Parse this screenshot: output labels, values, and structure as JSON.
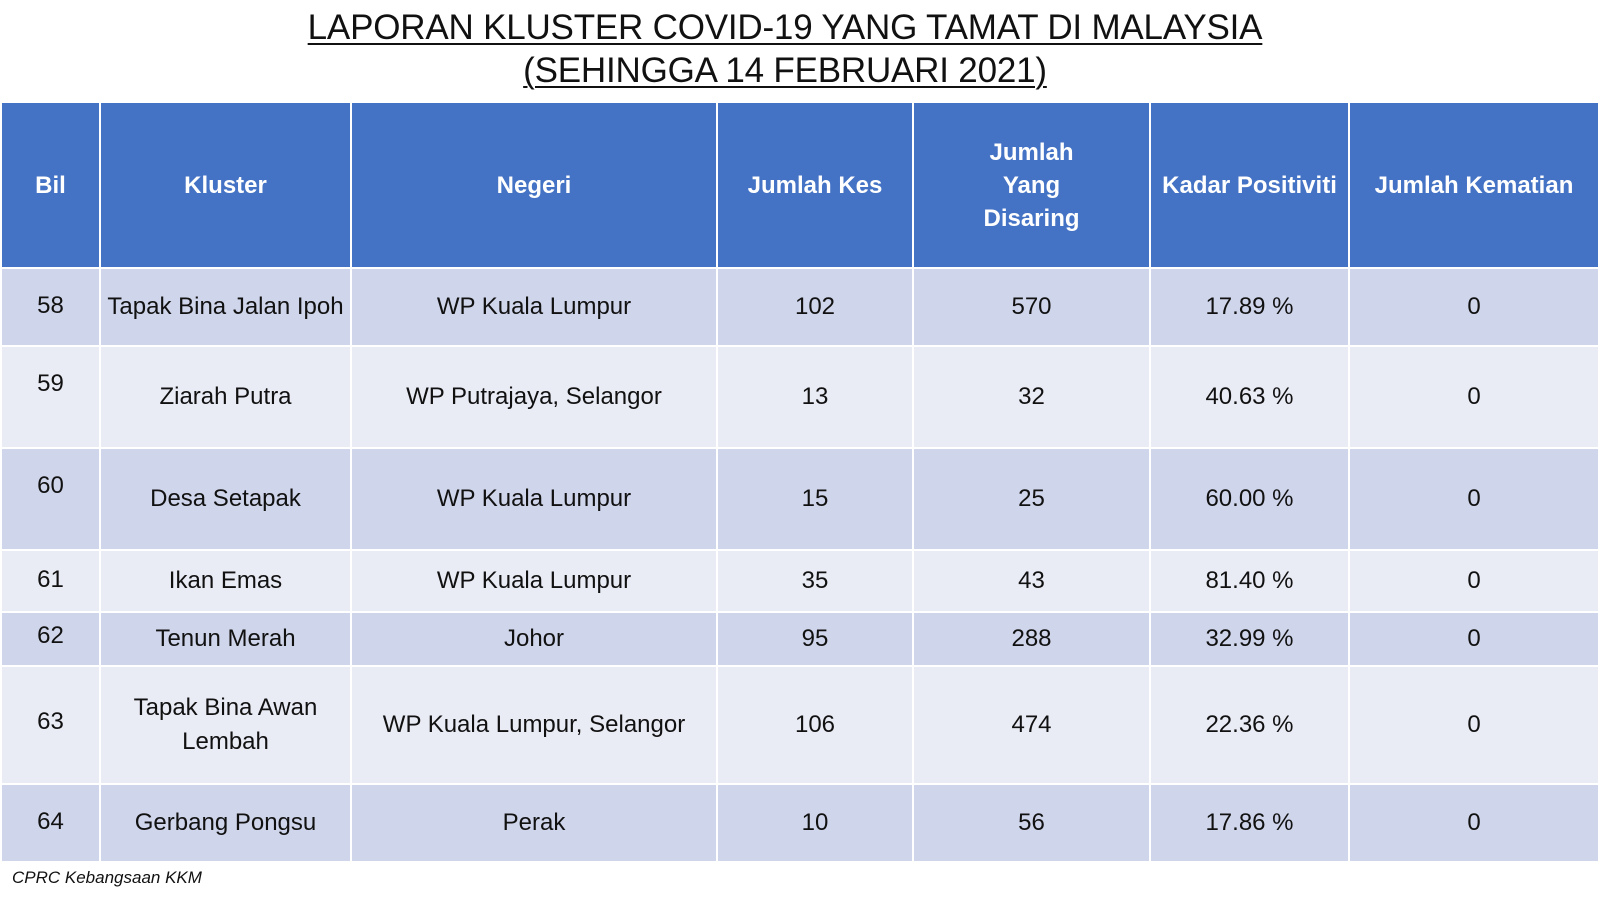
{
  "title": {
    "line1": "LAPORAN KLUSTER COVID-19 YANG TAMAT DI MALAYSIA",
    "line2": "(SEHINGGA  14 FEBRUARI 2021)"
  },
  "table": {
    "headers": {
      "bil": "Bil",
      "kluster": "Kluster",
      "negeri": "Negeri",
      "jumlah_kes": "Jumlah Kes",
      "jumlah_disaring": "Jumlah Yang Disaring",
      "kadar_positiviti": "Kadar Positiviti",
      "jumlah_kematian": "Jumlah Kematian"
    },
    "rows": [
      {
        "bil": "58",
        "kluster": "Tapak Bina Jalan Ipoh",
        "negeri": "WP Kuala Lumpur",
        "kes": "102",
        "disaring": "570",
        "positiviti": "17.89 %",
        "kematian": "0"
      },
      {
        "bil": "59",
        "kluster": "Ziarah Putra",
        "negeri": "WP Putrajaya, Selangor",
        "kes": "13",
        "disaring": "32",
        "positiviti": "40.63 %",
        "kematian": "0"
      },
      {
        "bil": "60",
        "kluster": "Desa Setapak",
        "negeri": "WP Kuala Lumpur",
        "kes": "15",
        "disaring": "25",
        "positiviti": "60.00 %",
        "kematian": "0"
      },
      {
        "bil": "61",
        "kluster": "Ikan Emas",
        "negeri": "WP Kuala Lumpur",
        "kes": "35",
        "disaring": "43",
        "positiviti": "81.40 %",
        "kematian": "0"
      },
      {
        "bil": "62",
        "kluster": "Tenun Merah",
        "negeri": "Johor",
        "kes": "95",
        "disaring": "288",
        "positiviti": "32.99 %",
        "kematian": "0"
      },
      {
        "bil": "63",
        "kluster": "Tapak Bina Awan Lembah",
        "negeri": "WP Kuala Lumpur, Selangor",
        "kes": "106",
        "disaring": "474",
        "positiviti": "22.36 %",
        "kematian": "0"
      },
      {
        "bil": "64",
        "kluster": "Gerbang Pongsu",
        "negeri": "Perak",
        "kes": "10",
        "disaring": "56",
        "positiviti": "17.86 %",
        "kematian": "0"
      }
    ]
  },
  "source": "CPRC Kebangsaan KKM",
  "colors": {
    "header_bg": "#4472c4",
    "row_dark": "#cfd5ea",
    "row_light": "#e9ebf5"
  }
}
